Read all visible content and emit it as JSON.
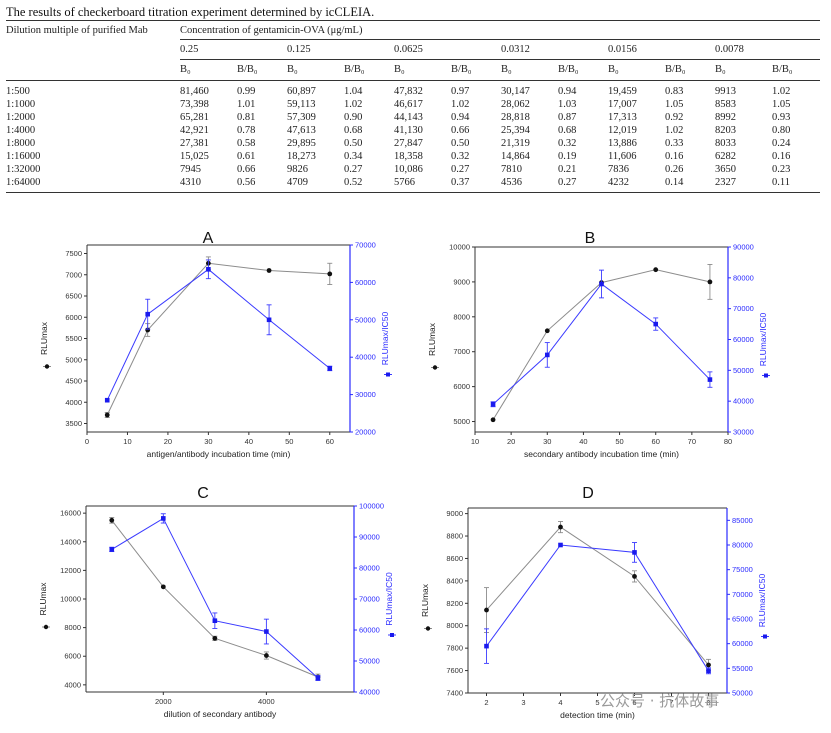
{
  "caption": "The results of checkerboard titration experiment determined by icCLEIA.",
  "table": {
    "row_header": "Dilution multiple of purified Mab",
    "group_header": "Concentration of gentamicin-OVA (μg/mL)",
    "concentrations": [
      "0.25",
      "0.125",
      "0.0625",
      "0.0312",
      "0.0156",
      "0.0078"
    ],
    "sub_headers": [
      "B₀",
      "B/B₀"
    ],
    "rows": [
      {
        "dilution": "1:500",
        "cells": [
          "81,460",
          "0.99",
          "60,897",
          "1.04",
          "47,832",
          "0.97",
          "30,147",
          "0.94",
          "19,459",
          "0.83",
          "9913",
          "1.02"
        ]
      },
      {
        "dilution": "1:1000",
        "cells": [
          "73,398",
          "1.01",
          "59,113",
          "1.02",
          "46,617",
          "1.02",
          "28,062",
          "1.03",
          "17,007",
          "1.05",
          "8583",
          "1.05"
        ]
      },
      {
        "dilution": "1:2000",
        "cells": [
          "65,281",
          "0.81",
          "57,309",
          "0.90",
          "44,143",
          "0.94",
          "28,818",
          "0.87",
          "17,313",
          "0.92",
          "8992",
          "0.93"
        ]
      },
      {
        "dilution": "1:4000",
        "cells": [
          "42,921",
          "0.78",
          "47,613",
          "0.68",
          "41,130",
          "0.66",
          "25,394",
          "0.68",
          "12,019",
          "1.02",
          "8203",
          "0.80"
        ]
      },
      {
        "dilution": "1:8000",
        "cells": [
          "27,381",
          "0.58",
          "29,895",
          "0.50",
          "27,847",
          "0.50",
          "21,319",
          "0.32",
          "13,886",
          "0.33",
          "8033",
          "0.24"
        ]
      },
      {
        "dilution": "1:16000",
        "cells": [
          "15,025",
          "0.61",
          "18,273",
          "0.34",
          "18,358",
          "0.32",
          "14,864",
          "0.19",
          "11,606",
          "0.16",
          "6282",
          "0.16"
        ]
      },
      {
        "dilution": "1:32000",
        "cells": [
          "7945",
          "0.66",
          "9826",
          "0.27",
          "10,086",
          "0.27",
          "7810",
          "0.21",
          "7836",
          "0.26",
          "3650",
          "0.23"
        ]
      },
      {
        "dilution": "1:64000",
        "cells": [
          "4310",
          "0.56",
          "4709",
          "0.52",
          "5766",
          "0.37",
          "4536",
          "0.27",
          "4232",
          "0.14",
          "2327",
          "0.11"
        ]
      }
    ]
  },
  "colors": {
    "series1": "#8c8c8c",
    "series2": "#3a3aff",
    "axis2": "#2b2bff",
    "marker1": "#111111",
    "marker2": "#1a1aee"
  },
  "chart_data": [
    {
      "type": "line",
      "panel": "A",
      "xlabel": "antigen/antibody incubation time (min)",
      "ylabel": "RLUmax",
      "y2label": "RLUmax/IC50",
      "xlim": [
        0,
        65
      ],
      "xticks": [
        "0",
        "10",
        "20",
        "30",
        "40",
        "50",
        "60"
      ],
      "ylim": [
        3300,
        7700
      ],
      "yticks": [
        "3500",
        "4000",
        "4500",
        "5000",
        "5500",
        "6000",
        "6500",
        "7000",
        "7500"
      ],
      "y2lim": [
        20000,
        70000
      ],
      "y2ticks": [
        "20000",
        "30000",
        "40000",
        "50000",
        "60000",
        "70000"
      ],
      "series": [
        {
          "name": "RLUmax",
          "axis": "left",
          "x": [
            5,
            15,
            30,
            45,
            60
          ],
          "values": [
            3700,
            5700,
            7270,
            7100,
            7020
          ],
          "err": [
            60,
            150,
            150,
            0,
            250
          ]
        },
        {
          "name": "RLUmax/IC50",
          "axis": "right",
          "x": [
            5,
            15,
            30,
            45,
            60
          ],
          "values": [
            28500,
            51500,
            63500,
            50000,
            37000
          ],
          "err": [
            0,
            4000,
            2500,
            4000,
            600
          ]
        }
      ]
    },
    {
      "type": "line",
      "panel": "B",
      "xlabel": "secondary antibody incubation time (min)",
      "ylabel": "RLUmax",
      "y2label": "RLUmax/IC50",
      "xlim": [
        10,
        80
      ],
      "xticks": [
        "10",
        "20",
        "30",
        "40",
        "50",
        "60",
        "70",
        "80"
      ],
      "ylim": [
        4700,
        10000
      ],
      "yticks": [
        "5000",
        "6000",
        "7000",
        "8000",
        "9000",
        "10000"
      ],
      "y2lim": [
        30000,
        90000
      ],
      "y2ticks": [
        "30000",
        "40000",
        "50000",
        "60000",
        "70000",
        "80000",
        "90000"
      ],
      "series": [
        {
          "name": "RLUmax",
          "axis": "left",
          "x": [
            15,
            30,
            45,
            60,
            75
          ],
          "values": [
            5050,
            7600,
            8980,
            9350,
            9000
          ],
          "err": [
            0,
            0,
            0,
            0,
            500
          ]
        },
        {
          "name": "RLUmax/IC50",
          "axis": "right",
          "x": [
            15,
            30,
            45,
            60,
            75
          ],
          "values": [
            39000,
            55000,
            78000,
            65000,
            47000
          ],
          "err": [
            800,
            4000,
            4500,
            2000,
            2500
          ]
        }
      ]
    },
    {
      "type": "line",
      "panel": "C",
      "xlabel": "dilution of secondary antibody",
      "ylabel": "RLUmax",
      "y2label": "RLUmax/IC50",
      "xlim": [
        500,
        5700
      ],
      "xticks": [
        "2000",
        "4000"
      ],
      "ylim": [
        3500,
        16500
      ],
      "yticks": [
        "4000",
        "6000",
        "8000",
        "10000",
        "12000",
        "14000",
        "16000"
      ],
      "y2lim": [
        40000,
        100000
      ],
      "y2ticks": [
        "40000",
        "50000",
        "60000",
        "70000",
        "80000",
        "90000",
        "100000"
      ],
      "series": [
        {
          "name": "RLUmax",
          "axis": "left",
          "x": [
            1000,
            2000,
            3000,
            4000,
            5000
          ],
          "values": [
            15500,
            10850,
            7250,
            6050,
            4550
          ],
          "err": [
            200,
            0,
            150,
            250,
            200
          ]
        },
        {
          "name": "RLUmax/IC50",
          "axis": "right",
          "x": [
            1000,
            2000,
            3000,
            4000,
            5000
          ],
          "values": [
            86000,
            96000,
            63000,
            59500,
            44500
          ],
          "err": [
            700,
            1500,
            2500,
            4000,
            800
          ]
        }
      ]
    },
    {
      "type": "line",
      "panel": "D",
      "xlabel": "detection time (min)",
      "ylabel": "RLUmax",
      "y2label": "RLUmax/IC50",
      "xlim": [
        1.5,
        8.5
      ],
      "xticks": [
        "2",
        "3",
        "4",
        "5",
        "6",
        "7",
        "8"
      ],
      "ylim": [
        7400,
        9050
      ],
      "yticks": [
        "7400",
        "7600",
        "7800",
        "8000",
        "8200",
        "8400",
        "8600",
        "8800",
        "9000"
      ],
      "y2lim": [
        50000,
        87500
      ],
      "y2ticks": [
        "50000",
        "55000",
        "60000",
        "65000",
        "70000",
        "75000",
        "80000",
        "85000"
      ],
      "series": [
        {
          "name": "RLUmax",
          "axis": "left",
          "x": [
            2,
            4,
            6,
            8
          ],
          "values": [
            8140,
            8880,
            8440,
            7650
          ],
          "err": [
            200,
            50,
            50,
            50
          ]
        },
        {
          "name": "RLUmax/IC50",
          "axis": "right",
          "x": [
            2,
            4,
            6,
            8
          ],
          "values": [
            59500,
            80000,
            78500,
            54500
          ],
          "err": [
            3500,
            0,
            2000,
            600
          ]
        }
      ]
    }
  ],
  "watermark": "公众号 · 抗体故事"
}
